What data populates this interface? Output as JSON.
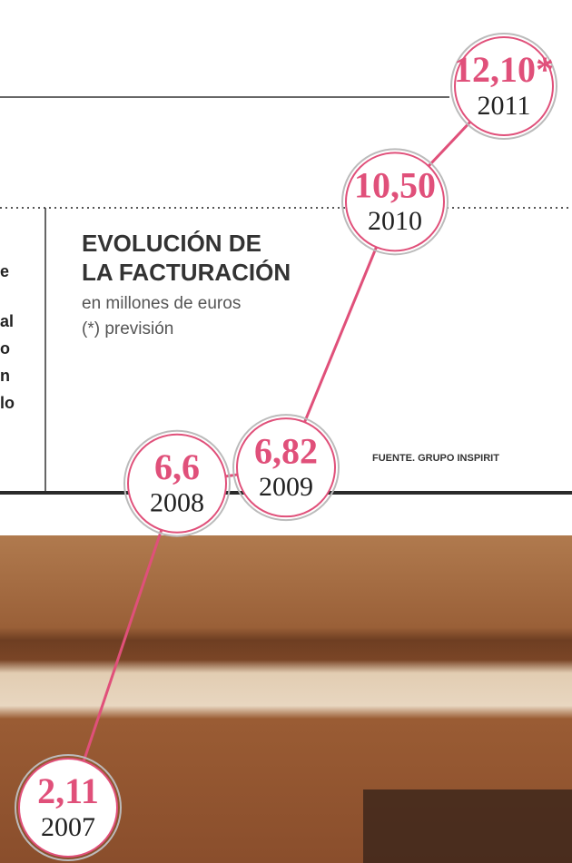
{
  "chart_data": {
    "type": "line",
    "title_lines": [
      "EVOLUCIÓN DE",
      "LA FACTURACIÓN"
    ],
    "subtitle": "en millones de euros",
    "note": "(*) previsión",
    "source": "FUENTE. GRUPO INSPIRIT",
    "categories": [
      "2007",
      "2008",
      "2009",
      "2010",
      "2011"
    ],
    "values": [
      2.11,
      6.6,
      6.82,
      10.5,
      12.1
    ],
    "value_labels": [
      "2,11",
      "6,6",
      "6,82",
      "10,50",
      "12,10*"
    ],
    "color": "#e0507a",
    "left_text_fragments": [
      "e",
      "al",
      "o",
      "n",
      "lo"
    ]
  }
}
